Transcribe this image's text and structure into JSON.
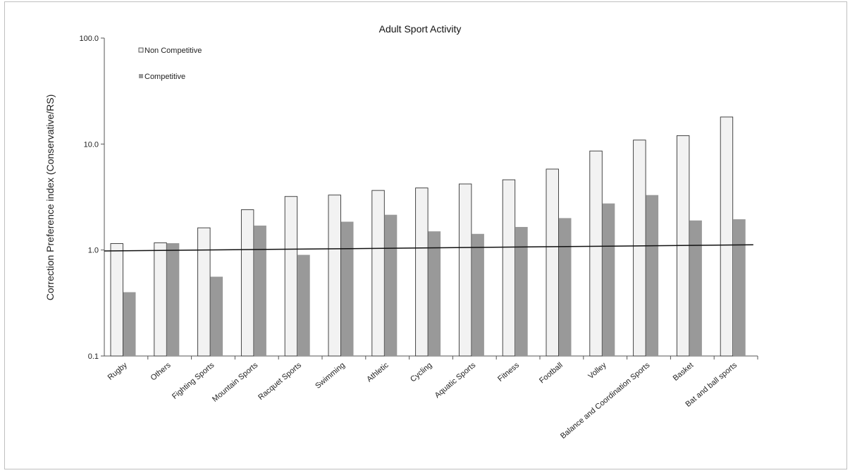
{
  "chart_data": {
    "type": "bar",
    "title": "Adult Sport Activity",
    "xlabel": "",
    "ylabel": "Correction Preference index (Conservative/RS)",
    "y_scale": "log",
    "ylim": [
      0.1,
      100
    ],
    "y_ticks": [
      "0.1",
      "1.0",
      "10.0",
      "100.0"
    ],
    "grid": false,
    "legend_position": "top-left",
    "categories": [
      "Rugby",
      "Others",
      "Fighting Sports",
      "Mountain Sports",
      "Racquet Sports",
      "Swimming",
      "Athletic",
      "Cycling",
      "Aquatic Sports",
      "Fitness",
      "Football",
      "Volley",
      "Balance and Coordination Sports",
      "Basket",
      "Bat and ball sports"
    ],
    "series": [
      {
        "name": "Non Competitive",
        "color": "#f2f2f2",
        "values": [
          1.15,
          1.17,
          1.62,
          2.4,
          3.2,
          3.3,
          3.65,
          3.85,
          4.2,
          4.6,
          5.8,
          8.6,
          10.9,
          12.0,
          18.0
        ]
      },
      {
        "name": "Competitive",
        "color": "#999999",
        "values": [
          0.4,
          1.16,
          0.56,
          1.7,
          0.9,
          1.85,
          2.15,
          1.5,
          1.42,
          1.65,
          2.0,
          2.75,
          3.3,
          1.9,
          1.95
        ]
      }
    ],
    "trendline": {
      "start": 0.98,
      "end": 1.12,
      "color": "#111111"
    }
  }
}
